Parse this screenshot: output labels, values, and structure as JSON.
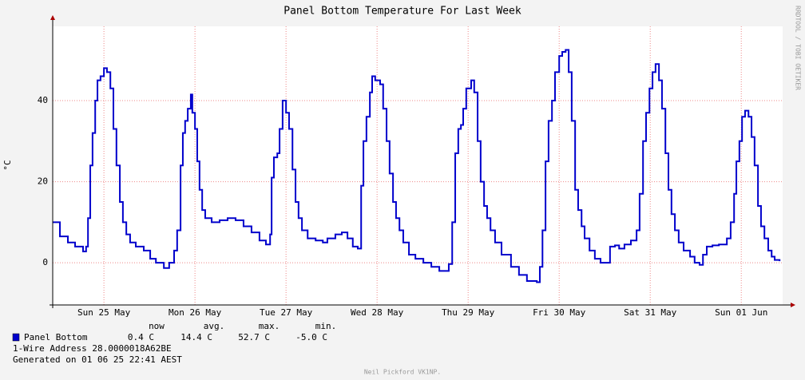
{
  "chart_data": {
    "type": "line",
    "title": "Panel Bottom Temperature For Last Week",
    "y_label": "°C",
    "xlim": [
      0,
      192.4
    ],
    "ylim": [
      -10.4,
      58.3
    ],
    "xticks": [
      {
        "value": 13.5,
        "label": "Sun 25 May"
      },
      {
        "value": 37.5,
        "label": "Mon 26 May"
      },
      {
        "value": 61.5,
        "label": "Tue 27 May"
      },
      {
        "value": 85.5,
        "label": "Wed 28 May"
      },
      {
        "value": 109.5,
        "label": "Thu 29 May"
      },
      {
        "value": 133.5,
        "label": "Fri 30 May"
      },
      {
        "value": 157.5,
        "label": "Sat 31 May"
      },
      {
        "value": 181.5,
        "label": "Sun 01 Jun"
      }
    ],
    "yticks": [
      0,
      20,
      40
    ],
    "grid": true,
    "series": [
      {
        "name": "Panel Bottom",
        "color": "#0000cc",
        "x": [
          0,
          1.9,
          4.0,
          5.9,
          8.0,
          8.8,
          9.3,
          9.9,
          10.5,
          11.2,
          11.8,
          12.6,
          13.5,
          14.3,
          15.2,
          16.0,
          16.8,
          17.7,
          18.5,
          19.4,
          20.4,
          21.9,
          24.0,
          25.7,
          27.2,
          29.3,
          30.7,
          32.0,
          32.8,
          33.7,
          34.3,
          34.9,
          35.6,
          36.4,
          36.8,
          37.5,
          38.1,
          38.7,
          39.4,
          40.2,
          41.9,
          44.0,
          46.1,
          48.2,
          50.3,
          52.4,
          54.5,
          56.2,
          57.3,
          57.7,
          58.3,
          59.2,
          59.8,
          60.6,
          61.5,
          62.3,
          63.2,
          64.0,
          64.8,
          65.7,
          67.2,
          69.3,
          71.2,
          72.4,
          74.5,
          76.2,
          77.7,
          79.1,
          80.4,
          81.3,
          81.9,
          82.7,
          83.6,
          84.2,
          85.0,
          86.3,
          87.1,
          88.0,
          88.8,
          89.7,
          90.5,
          91.4,
          92.4,
          93.9,
          95.6,
          97.7,
          99.8,
          101.9,
          103.6,
          104.4,
          105.3,
          106.1,
          106.9,
          107.6,
          108.2,
          109.0,
          110.3,
          111.1,
          112.0,
          112.8,
          113.7,
          114.5,
          115.4,
          116.6,
          118.3,
          120.8,
          122.9,
          125.0,
          127.6,
          128.4,
          129.1,
          129.9,
          130.7,
          131.6,
          132.4,
          133.5,
          134.3,
          135.2,
          136.0,
          136.8,
          137.7,
          138.5,
          139.4,
          140.2,
          141.5,
          142.9,
          144.4,
          146.1,
          146.9,
          148.2,
          149.3,
          150.7,
          152.4,
          153.9,
          154.7,
          155.6,
          156.4,
          157.3,
          158.1,
          158.9,
          159.8,
          160.6,
          161.5,
          162.3,
          163.1,
          164.0,
          165.0,
          166.3,
          168.0,
          169.2,
          170.5,
          171.4,
          172.4,
          173.9,
          175.6,
          177.7,
          178.7,
          179.6,
          180.2,
          181.0,
          181.7,
          182.5,
          183.4,
          184.2,
          185.0,
          185.9,
          186.7,
          187.6,
          188.6,
          189.5,
          190.3,
          191.6
        ],
        "values": [
          10,
          6.5,
          5,
          4,
          2.8,
          4,
          11,
          24,
          32,
          40,
          45,
          46,
          48,
          47,
          43,
          33,
          24,
          15,
          10,
          7,
          5,
          4,
          3,
          1,
          0,
          -1.3,
          0,
          3,
          8,
          24,
          32,
          35,
          38,
          41.5,
          37,
          33,
          25,
          18,
          13,
          11,
          10,
          10.5,
          11,
          10.5,
          9,
          7.5,
          5.5,
          4.5,
          7,
          21,
          26,
          27,
          33,
          40,
          37,
          33,
          23,
          15,
          11,
          8,
          6,
          5.5,
          5,
          6,
          7,
          7.5,
          6,
          4,
          3.5,
          19,
          30,
          36,
          42,
          46,
          45,
          44,
          38,
          30,
          22,
          15,
          11,
          8,
          5,
          2,
          1,
          0,
          -1,
          -2,
          -2,
          -0.3,
          10,
          27,
          33,
          34,
          38,
          43,
          45,
          42,
          30,
          20,
          14,
          11,
          8,
          5,
          2,
          -1,
          -3,
          -4.5,
          -4.8,
          -1,
          8,
          25,
          35,
          40,
          47,
          51,
          52,
          52.5,
          47,
          35,
          18,
          13,
          9,
          6,
          3,
          1,
          0,
          0,
          4,
          4.3,
          3.5,
          4.5,
          5.5,
          8,
          17,
          30,
          37,
          43,
          47,
          49,
          45,
          38,
          27,
          18,
          12,
          8,
          5,
          3,
          1.5,
          0,
          -0.5,
          2,
          4,
          4.3,
          4.5,
          6,
          10,
          17,
          25,
          30,
          36,
          37.5,
          36,
          31,
          24,
          14,
          9,
          6,
          3,
          1.5,
          0.7,
          0.4
        ]
      }
    ]
  },
  "legend": {
    "headers": [
      "now",
      "avg.",
      "max.",
      "min."
    ],
    "name": "Panel Bottom",
    "stats": [
      "0.4 C",
      "14.4 C",
      "52.7 C",
      "-5.0 C"
    ],
    "address": "1-Wire Address 28.0000018A62BE",
    "generated": "Generated on 01 06 25 22:41 AEST"
  },
  "watermark": "RRDTOOL / TOBI OETIKER",
  "author": "Neil Pickford VK1NP."
}
